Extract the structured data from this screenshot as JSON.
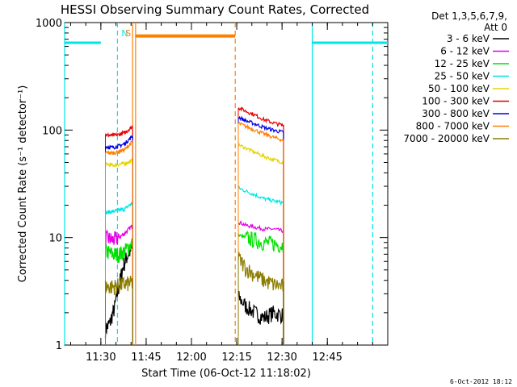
{
  "chart_data": {
    "type": "line",
    "title": "HESSI Observing Summary Count Rates, Corrected",
    "xlabel": "Start Time (06-Oct-12 11:18:02)",
    "ylabel": "Corrected Count Rate (s⁻¹ detector⁻¹)",
    "yscale": "log",
    "ylim": [
      1,
      1000
    ],
    "xlim_minutes_after_11_18_02": [
      0,
      107
    ],
    "x_ticks": [
      {
        "label": "11:30",
        "minutes": 12
      },
      {
        "label": "11:45",
        "minutes": 27
      },
      {
        "label": "12:00",
        "minutes": 42
      },
      {
        "label": "12:15",
        "minutes": 57
      },
      {
        "label": "12:30",
        "minutes": 72
      },
      {
        "label": "12:45",
        "minutes": 87
      }
    ],
    "y_ticks": [
      {
        "label": "1",
        "value": 1
      },
      {
        "label": "10",
        "value": 10
      },
      {
        "label": "100",
        "value": 100
      },
      {
        "label": "1000",
        "value": 1000
      }
    ],
    "legend_header": [
      "Det 1,3,5,6,7,9,",
      "Att 0"
    ],
    "legend_position": "right",
    "footer_date": "6-Oct-2012 18:12",
    "series": [
      {
        "name": "3 - 6 keV",
        "color": "#000000",
        "segments": [
          {
            "t0": 13.5,
            "t1": 22.5,
            "v0": 1.5,
            "v1": 8,
            "points": [
              [
                13.5,
                1.4
              ],
              [
                15,
                1.6
              ],
              [
                16.5,
                2.2
              ],
              [
                18,
                3.5
              ],
              [
                19.5,
                5.5
              ],
              [
                21,
                7
              ],
              [
                22.5,
                8
              ]
            ]
          },
          {
            "t0": 57.5,
            "t1": 72.5,
            "v0": 3,
            "v1": 2,
            "points": [
              [
                57.5,
                2.8
              ],
              [
                60,
                2.3
              ],
              [
                63,
                2.0
              ],
              [
                66,
                1.8
              ],
              [
                69,
                2.0
              ],
              [
                72.5,
                1.9
              ]
            ]
          }
        ]
      },
      {
        "name": "6 - 12 keV",
        "color": "#e500e5",
        "segments": [
          {
            "t0": 13.5,
            "t1": 22.5,
            "v0": 10,
            "v1": 12,
            "points": [
              [
                13.5,
                10
              ],
              [
                16,
                9.5
              ],
              [
                18,
                10
              ],
              [
                20,
                11
              ],
              [
                22.5,
                13
              ]
            ]
          },
          {
            "t0": 57.5,
            "t1": 72.5,
            "v0": 13,
            "v1": 12,
            "points": [
              [
                57.5,
                14
              ],
              [
                60,
                13
              ],
              [
                63,
                12.5
              ],
              [
                66,
                12
              ],
              [
                69,
                12
              ],
              [
                72.5,
                11.5
              ]
            ]
          }
        ]
      },
      {
        "name": "12 - 25 keV",
        "color": "#00e000",
        "segments": [
          {
            "t0": 13.5,
            "t1": 22.5,
            "v0": 7.5,
            "v1": 8,
            "points": [
              [
                13.5,
                7.5
              ],
              [
                16,
                7
              ],
              [
                18,
                7
              ],
              [
                20,
                7.5
              ],
              [
                22.5,
                9
              ]
            ]
          },
          {
            "t0": 57.5,
            "t1": 72.5,
            "v0": 10,
            "v1": 8.5,
            "points": [
              [
                57.5,
                10.5
              ],
              [
                60,
                10
              ],
              [
                63,
                9.5
              ],
              [
                66,
                9
              ],
              [
                69,
                8.8
              ],
              [
                72.5,
                8.5
              ]
            ]
          }
        ]
      },
      {
        "name": "25 - 50 keV",
        "color": "#00e5e5",
        "segments": [
          {
            "t0": 13.5,
            "t1": 22.5,
            "v0": 17,
            "v1": 20,
            "points": [
              [
                13.5,
                17
              ],
              [
                16,
                17.5
              ],
              [
                18,
                18
              ],
              [
                20,
                18.5
              ],
              [
                22.5,
                21
              ]
            ]
          },
          {
            "t0": 57.5,
            "t1": 72.5,
            "v0": 28,
            "v1": 21,
            "points": [
              [
                57.5,
                29
              ],
              [
                60,
                27
              ],
              [
                63,
                25
              ],
              [
                66,
                23
              ],
              [
                69,
                22
              ],
              [
                72.5,
                21
              ]
            ]
          }
        ]
      },
      {
        "name": "50 - 100 keV",
        "color": "#e5d500",
        "segments": [
          {
            "t0": 13.5,
            "t1": 22.5,
            "v0": 48,
            "v1": 50,
            "points": [
              [
                13.5,
                48
              ],
              [
                16,
                47
              ],
              [
                18,
                48
              ],
              [
                20,
                49
              ],
              [
                22.5,
                52
              ]
            ]
          },
          {
            "t0": 57.5,
            "t1": 72.5,
            "v0": 72,
            "v1": 50,
            "points": [
              [
                57.5,
                73
              ],
              [
                60,
                68
              ],
              [
                63,
                62
              ],
              [
                66,
                57
              ],
              [
                69,
                53
              ],
              [
                72.5,
                50
              ]
            ]
          }
        ]
      },
      {
        "name": "100 - 300 keV",
        "color": "#e50000",
        "segments": [
          {
            "t0": 13.5,
            "t1": 22.5,
            "v0": 90,
            "v1": 105,
            "points": [
              [
                13.5,
                90
              ],
              [
                16,
                89
              ],
              [
                18,
                91
              ],
              [
                20,
                95
              ],
              [
                22.5,
                108
              ]
            ]
          },
          {
            "t0": 57.5,
            "t1": 72.5,
            "v0": 160,
            "v1": 110,
            "points": [
              [
                57.5,
                162
              ],
              [
                60,
                150
              ],
              [
                63,
                138
              ],
              [
                66,
                125
              ],
              [
                69,
                117
              ],
              [
                72.5,
                110
              ]
            ]
          }
        ]
      },
      {
        "name": "300 - 800 keV",
        "color": "#0000e5",
        "segments": [
          {
            "t0": 13.5,
            "t1": 22.5,
            "v0": 70,
            "v1": 85,
            "points": [
              [
                13.5,
                70
              ],
              [
                16,
                69
              ],
              [
                18,
                71
              ],
              [
                20,
                75
              ],
              [
                22.5,
                88
              ]
            ]
          },
          {
            "t0": 57.5,
            "t1": 72.5,
            "v0": 130,
            "v1": 95,
            "points": [
              [
                57.5,
                132
              ],
              [
                60,
                122
              ],
              [
                63,
                114
              ],
              [
                66,
                106
              ],
              [
                69,
                100
              ],
              [
                72.5,
                95
              ]
            ]
          }
        ]
      },
      {
        "name": "800 - 7000 keV",
        "color": "#ff8000",
        "segments": [
          {
            "t0": 13.5,
            "t1": 22.5,
            "v0": 62,
            "v1": 75,
            "points": [
              [
                13.5,
                62
              ],
              [
                16,
                61
              ],
              [
                18,
                63
              ],
              [
                20,
                66
              ],
              [
                22.5,
                78
              ]
            ]
          },
          {
            "t0": 57.5,
            "t1": 72.5,
            "v0": 115,
            "v1": 80,
            "points": [
              [
                57.5,
                116
              ],
              [
                60,
                108
              ],
              [
                63,
                100
              ],
              [
                66,
                92
              ],
              [
                69,
                86
              ],
              [
                72.5,
                80
              ]
            ]
          }
        ]
      },
      {
        "name": "7000 - 20000 keV",
        "color": "#8c7d00",
        "segments": [
          {
            "t0": 13.5,
            "t1": 22.5,
            "v0": 3.5,
            "v1": 3.8,
            "points": [
              [
                13.5,
                3.5
              ],
              [
                16,
                3.5
              ],
              [
                18,
                3.6
              ],
              [
                20,
                3.7
              ],
              [
                22.5,
                3.8
              ]
            ]
          },
          {
            "t0": 57.5,
            "t1": 72.5,
            "v0": 6.5,
            "v1": 3.5,
            "points": [
              [
                57.5,
                6.5
              ],
              [
                60,
                5.2
              ],
              [
                63,
                4.5
              ],
              [
                66,
                4.0
              ],
              [
                69,
                3.7
              ],
              [
                72.5,
                3.5
              ]
            ]
          }
        ]
      }
    ],
    "markers": [
      {
        "label": "",
        "kind": "night-bar",
        "color": "#00e5e5",
        "t0": 0,
        "t1": 12,
        "value": 650
      },
      {
        "label": "N",
        "kind": "dashed",
        "color": "#00e5e5",
        "t": 17.5
      },
      {
        "label": "",
        "kind": "solid",
        "color": "#00e5e5",
        "t": 0
      },
      {
        "label": "S",
        "kind": "solid",
        "color": "#ff8000",
        "t": 22.5
      },
      {
        "label": "",
        "kind": "solid",
        "color": "#ff8000",
        "t": 23.5
      },
      {
        "label": "",
        "kind": "saa-bar",
        "color": "#ff8000",
        "t0": 23.5,
        "t1": 56.5,
        "value": 750
      },
      {
        "label": "",
        "kind": "dashed",
        "color": "#ff8000",
        "t": 56.5
      },
      {
        "label": "",
        "kind": "solid",
        "color": "#00e5e5",
        "t": 82
      },
      {
        "label": "",
        "kind": "night-bar",
        "color": "#00e5e5",
        "t0": 82,
        "t1": 107,
        "value": 650
      },
      {
        "label": "",
        "kind": "dashed",
        "color": "#00e5e5",
        "t": 102
      }
    ]
  }
}
